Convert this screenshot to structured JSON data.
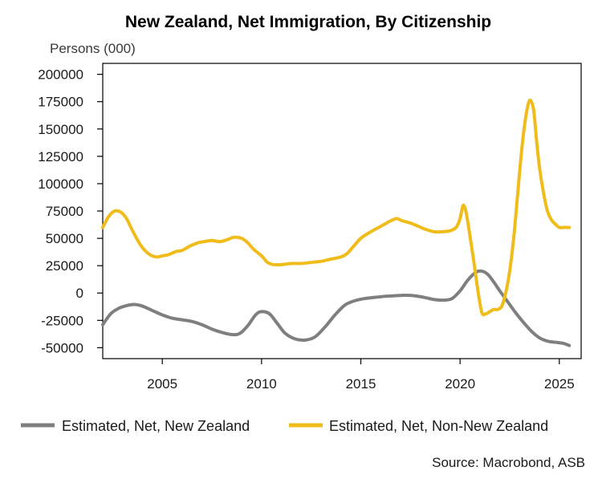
{
  "chart_data": {
    "type": "line",
    "title": "New Zealand, Net Immigration, By Citizenship",
    "ylabel": "Persons (000)",
    "xlabel": "",
    "xlim": [
      2002.0,
      2026.1
    ],
    "ylim": [
      -60000,
      210000
    ],
    "y_ticks": [
      200000,
      175000,
      150000,
      125000,
      100000,
      75000,
      50000,
      25000,
      0,
      -25000,
      -50000
    ],
    "y_tick_labels": [
      "200000",
      "175000",
      "150000",
      "125000",
      "100000",
      "75000",
      "50000",
      "25000",
      "0",
      "-25000",
      "-50000"
    ],
    "x_ticks": [
      2005,
      2010,
      2015,
      2020,
      2025
    ],
    "x_tick_labels": [
      "2005",
      "2010",
      "2015",
      "2020",
      "2025"
    ],
    "grid": false,
    "legend_position": "bottom",
    "source": "Source: Macrobond, ASB",
    "series": [
      {
        "name": "Estimated, Net, New Zealand",
        "color": "#7f7f7f",
        "x": [
          2002.0,
          2002.4,
          2002.8,
          2003.2,
          2003.6,
          2004.0,
          2004.5,
          2005.0,
          2005.5,
          2006.0,
          2006.5,
          2007.0,
          2007.5,
          2008.0,
          2008.5,
          2008.9,
          2009.3,
          2009.7,
          2010.0,
          2010.4,
          2010.8,
          2011.2,
          2011.7,
          2012.2,
          2012.7,
          2013.2,
          2013.7,
          2014.2,
          2014.7,
          2015.2,
          2015.7,
          2016.2,
          2016.7,
          2017.2,
          2017.7,
          2018.2,
          2018.7,
          2019.2,
          2019.6,
          2020.0,
          2020.4,
          2020.8,
          2021.1,
          2021.4,
          2021.7,
          2022.0,
          2022.4,
          2022.8,
          2023.2,
          2023.6,
          2024.0,
          2024.4,
          2024.8,
          2025.2,
          2025.5
        ],
        "values": [
          -29000,
          -19000,
          -14000,
          -11500,
          -10500,
          -12000,
          -16000,
          -20000,
          -23000,
          -24500,
          -26000,
          -29000,
          -33000,
          -36000,
          -38000,
          -37000,
          -30000,
          -20000,
          -17000,
          -19000,
          -28000,
          -37000,
          -42000,
          -43000,
          -40000,
          -31000,
          -20000,
          -11000,
          -7000,
          -5000,
          -4000,
          -3000,
          -2500,
          -2000,
          -2500,
          -4000,
          -6000,
          -6500,
          -5000,
          2000,
          12000,
          19000,
          20000,
          17000,
          10000,
          2000,
          -8000,
          -18000,
          -27000,
          -35000,
          -41000,
          -44000,
          -45000,
          -46000,
          -48000
        ]
      },
      {
        "name": "Estimated, Net, Non-New Zealand",
        "color": "#f0bc1a",
        "x": [
          2002.0,
          2002.3,
          2002.6,
          2002.9,
          2003.2,
          2003.5,
          2003.9,
          2004.3,
          2004.7,
          2005.0,
          2005.3,
          2005.7,
          2006.0,
          2006.4,
          2006.8,
          2007.1,
          2007.5,
          2007.9,
          2008.3,
          2008.6,
          2009.0,
          2009.3,
          2009.6,
          2010.0,
          2010.3,
          2010.6,
          2011.0,
          2011.5,
          2012.0,
          2012.5,
          2013.0,
          2013.5,
          2014.0,
          2014.3,
          2014.6,
          2015.0,
          2015.5,
          2015.9,
          2016.2,
          2016.5,
          2016.8,
          2017.1,
          2017.5,
          2017.9,
          2018.3,
          2018.7,
          2019.1,
          2019.5,
          2019.8,
          2020.0,
          2020.15,
          2020.3,
          2020.5,
          2020.7,
          2020.9,
          2021.1,
          2021.3,
          2021.5,
          2021.7,
          2021.9,
          2022.1,
          2022.3,
          2022.5,
          2022.7,
          2022.9,
          2023.1,
          2023.3,
          2023.5,
          2023.7,
          2023.85,
          2024.0,
          2024.2,
          2024.4,
          2024.6,
          2024.8,
          2025.0,
          2025.2,
          2025.4,
          2025.5
        ],
        "values": [
          60000,
          70000,
          75000,
          74000,
          68000,
          57000,
          44000,
          36000,
          33000,
          34000,
          35000,
          38000,
          39000,
          43000,
          46000,
          47000,
          48000,
          47000,
          49000,
          51000,
          50000,
          46000,
          40000,
          34000,
          28000,
          26000,
          26000,
          27000,
          27000,
          28000,
          29000,
          31000,
          33000,
          36000,
          42000,
          50000,
          56000,
          60000,
          63000,
          66000,
          68000,
          66000,
          64000,
          61000,
          58000,
          56000,
          56000,
          57000,
          60000,
          68000,
          80000,
          74000,
          52000,
          28000,
          2000,
          -18000,
          -19000,
          -17000,
          -15000,
          -15000,
          -12000,
          0,
          20000,
          50000,
          90000,
          130000,
          160000,
          176000,
          168000,
          140000,
          115000,
          92000,
          75000,
          67000,
          63000,
          60000,
          60000,
          60000,
          60000
        ]
      }
    ]
  }
}
